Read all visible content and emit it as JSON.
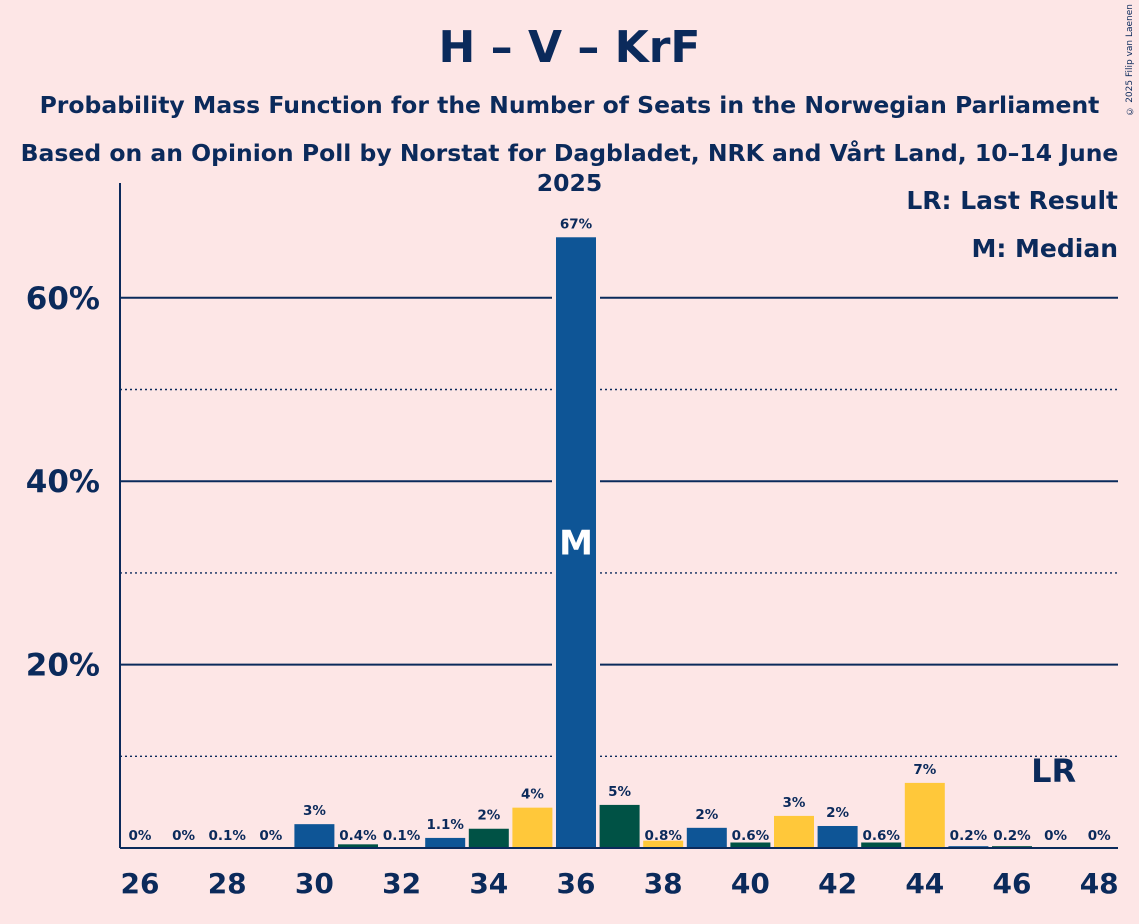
{
  "header": {
    "title": "H – V – KrF",
    "subtitle1": "Probability Mass Function for the Number of Seats in the Norwegian Parliament",
    "subtitle2": "Based on an Opinion Poll by Norstat for Dagbladet, NRK and Vårt Land, 10–14 June 2025",
    "copyright": "© 2025 Filip van Laenen"
  },
  "legend": {
    "lr": "LR: Last Result",
    "median": "M: Median"
  },
  "colors": {
    "H": "#0e5596",
    "V": "#005245",
    "KrF": "#ffc83a",
    "background": "#fde6e6",
    "text": "#0b2a5b"
  },
  "chart_data": {
    "type": "bar",
    "x": [
      26,
      27,
      28,
      29,
      30,
      31,
      32,
      33,
      34,
      35,
      36,
      37,
      38,
      39,
      40,
      41,
      42,
      43,
      44,
      45,
      46,
      47,
      48
    ],
    "values": [
      0,
      0,
      0.1,
      0,
      2.6,
      0.4,
      0.1,
      1.1,
      2.1,
      4.4,
      66.6,
      4.7,
      0.8,
      2.2,
      0.6,
      3.5,
      2.4,
      0.6,
      7.1,
      0.2,
      0.2,
      0,
      0
    ],
    "labels": [
      "0%",
      "0%",
      "0.1%",
      "0%",
      "3%",
      "0.4%",
      "0.1%",
      "1.1%",
      "2%",
      "4%",
      "67%",
      "5%",
      "0.8%",
      "2%",
      "0.6%",
      "3%",
      "2%",
      "0.6%",
      "7%",
      "0.2%",
      "0.2%",
      "0%",
      "0%"
    ],
    "bar_colors": [
      "#0e5596",
      "#005245",
      "#ffc83a",
      "#0e5596",
      "#0e5596",
      "#005245",
      "#ffc83a",
      "#0e5596",
      "#005245",
      "#ffc83a",
      "#0e5596",
      "#005245",
      "#ffc83a",
      "#0e5596",
      "#005245",
      "#ffc83a",
      "#0e5596",
      "#005245",
      "#ffc83a",
      "#0e5596",
      "#005245",
      "#ffc83a",
      "#0e5596"
    ],
    "x_ticks": [
      26,
      28,
      30,
      32,
      34,
      36,
      38,
      40,
      42,
      44,
      46,
      48
    ],
    "y_ticks": [
      20,
      40,
      60
    ],
    "y_tick_labels": [
      "20%",
      "40%",
      "60%"
    ],
    "y_minor_ticks": [
      10,
      30,
      50
    ],
    "ylim": [
      0,
      72
    ],
    "median_seat": 36,
    "median_marker": "M",
    "last_result_seat": 47,
    "last_result_marker": "LR",
    "grid": true,
    "legend_position": "top-right"
  }
}
